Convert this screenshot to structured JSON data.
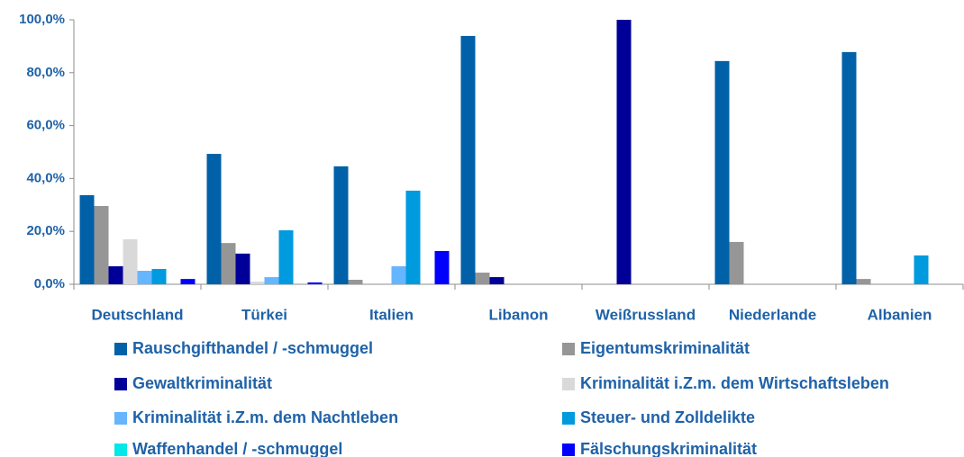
{
  "chart_data": {
    "type": "bar",
    "categories": [
      "Deutschland",
      "Türkei",
      "Italien",
      "Libanon",
      "Weißrussland",
      "Niederlande",
      "Albanien"
    ],
    "series": [
      {
        "name": "Rauschgifthandel / -schmuggel",
        "color": "#0061a8",
        "values": [
          33.7,
          49.3,
          44.6,
          93.9,
          0,
          84.4,
          87.8
        ]
      },
      {
        "name": "Eigentumskriminalität",
        "color": "#969696",
        "values": [
          29.6,
          15.6,
          1.7,
          4.4,
          0,
          16,
          2
        ]
      },
      {
        "name": "Gewaltkriminalität",
        "color": "#000099",
        "values": [
          6.8,
          11.6,
          0,
          2.7,
          100,
          0,
          0
        ]
      },
      {
        "name": "Kriminalität i.Z.m. dem Wirtschaftsleben",
        "color": "#d9d9d9",
        "values": [
          17,
          1,
          0,
          0,
          0,
          0,
          0
        ]
      },
      {
        "name": "Kriminalität i.Z.m. dem Nachtleben",
        "color": "#66b5ff",
        "values": [
          5.1,
          2.7,
          6.8,
          0,
          0,
          0,
          0
        ]
      },
      {
        "name": "Steuer- und Zolldelikte",
        "color": "#009ade",
        "values": [
          5.8,
          20.4,
          35.4,
          0,
          0,
          0,
          10.9
        ]
      },
      {
        "name": "Waffenhandel / -schmuggel",
        "color": "#00e8e8",
        "values": [
          0,
          0,
          0,
          0,
          0,
          0,
          0
        ]
      },
      {
        "name": "Fälschungskriminalität",
        "color": "#0000ff",
        "values": [
          2,
          0.7,
          12.6,
          0,
          0,
          0,
          0
        ]
      }
    ],
    "ylim": [
      0,
      100
    ],
    "yticks": [
      {
        "value": 0,
        "label": "0,0%"
      },
      {
        "value": 20,
        "label": "20,0%"
      },
      {
        "value": 40,
        "label": "40,0%"
      },
      {
        "value": 60,
        "label": "60,0%"
      },
      {
        "value": 80,
        "label": "80,0%"
      },
      {
        "value": 100,
        "label": "100,0%"
      }
    ],
    "grid": false
  }
}
